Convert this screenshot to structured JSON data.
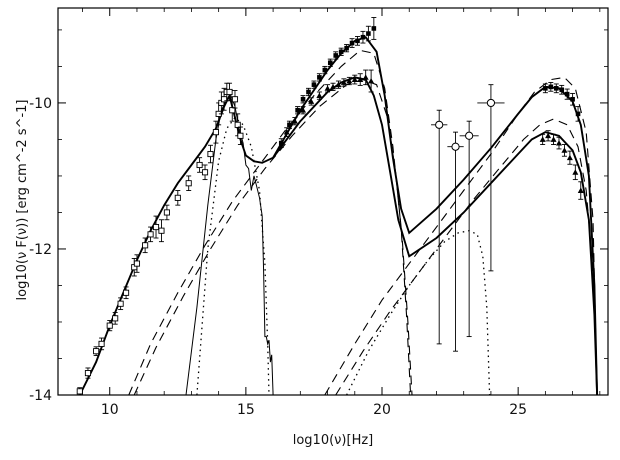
{
  "chart_data": {
    "type": "scatter",
    "title": "",
    "xlabel": "log10(ν)[Hz]",
    "ylabel": "log10(ν F(ν)) [erg cm^-2 s^-1]",
    "xlim": [
      8.1,
      28.3
    ],
    "ylim": [
      -14,
      -8.7
    ],
    "x_ticks": [
      10,
      15,
      20,
      25
    ],
    "x_tick_labels": [
      "10",
      "15",
      "20",
      "25"
    ],
    "y_ticks": [
      -14,
      -12,
      -10
    ],
    "y_tick_labels": [
      "-14",
      "-12",
      "-10"
    ],
    "grid": false,
    "legend": "none",
    "series": [
      {
        "style": "solid-high",
        "x": [
          8.9,
          9.5,
          10.0,
          10.5,
          11.0,
          11.5,
          12.0,
          12.5,
          13.0,
          13.5,
          13.9,
          14.2,
          14.4,
          14.6,
          14.8,
          15.0,
          15.3,
          15.6,
          16.0,
          17.0,
          18.0,
          18.5,
          19.0,
          19.4,
          19.8,
          20.1,
          20.4,
          20.7,
          21.0,
          22.0,
          23.0,
          24.0,
          25.0,
          25.5,
          26.0,
          26.5,
          27.0,
          27.3,
          27.6,
          27.8,
          27.9
        ],
        "y": [
          -14.0,
          -13.55,
          -13.05,
          -12.6,
          -12.15,
          -11.75,
          -11.4,
          -11.1,
          -10.85,
          -10.6,
          -10.35,
          -10.05,
          -9.9,
          -10.2,
          -10.5,
          -10.72,
          -10.8,
          -10.82,
          -10.75,
          -10.1,
          -9.55,
          -9.32,
          -9.15,
          -9.1,
          -9.3,
          -9.9,
          -10.75,
          -11.45,
          -11.78,
          -11.45,
          -11.05,
          -10.62,
          -10.15,
          -9.92,
          -9.78,
          -9.8,
          -9.98,
          -10.3,
          -11.0,
          -12.5,
          -14.0
        ]
      },
      {
        "style": "solid-low",
        "x": [
          16.0,
          17.0,
          18.0,
          18.5,
          19.0,
          19.4,
          19.7,
          20.0,
          20.3,
          20.6,
          21.0,
          22.0,
          23.0,
          24.0,
          25.0,
          25.5,
          26.0,
          26.5,
          27.0,
          27.3,
          27.6,
          27.8,
          27.9
        ],
        "y": [
          -10.75,
          -10.25,
          -9.85,
          -9.72,
          -9.65,
          -9.68,
          -9.9,
          -10.3,
          -10.95,
          -11.6,
          -12.1,
          -11.85,
          -11.5,
          -11.1,
          -10.7,
          -10.5,
          -10.4,
          -10.45,
          -10.65,
          -10.95,
          -11.6,
          -12.9,
          -14.0
        ]
      },
      {
        "style": "dashed-high",
        "x": [
          10.7,
          11.5,
          12.5,
          13.5,
          14.5,
          15.5,
          16.5,
          17.5,
          18.5,
          19.2,
          19.7,
          20.1,
          20.4,
          20.7,
          20.9,
          21.05
        ],
        "y": [
          -14.0,
          -13.3,
          -12.6,
          -11.95,
          -11.35,
          -10.85,
          -10.35,
          -9.9,
          -9.5,
          -9.28,
          -9.32,
          -9.8,
          -10.6,
          -11.7,
          -12.9,
          -14.0
        ]
      },
      {
        "style": "dashed-low",
        "x": [
          10.9,
          11.7,
          12.7,
          13.7,
          14.7,
          15.7,
          16.7,
          17.7,
          18.7,
          19.3,
          19.8,
          20.2,
          20.5,
          20.75,
          20.95,
          21.1
        ],
        "y": [
          -14.0,
          -13.35,
          -12.65,
          -12.0,
          -11.4,
          -10.9,
          -10.45,
          -10.05,
          -9.75,
          -9.68,
          -9.75,
          -10.2,
          -10.95,
          -11.9,
          -13.0,
          -14.0
        ]
      },
      {
        "style": "dashed-high",
        "x": [
          17.9,
          19.0,
          20.0,
          21.0,
          22.0,
          23.0,
          24.0,
          25.0,
          25.6,
          26.2,
          26.7,
          27.1,
          27.5,
          27.75,
          27.9
        ],
        "y": [
          -14.0,
          -13.3,
          -12.7,
          -12.2,
          -11.7,
          -11.2,
          -10.7,
          -10.15,
          -9.85,
          -9.68,
          -9.65,
          -9.8,
          -10.4,
          -11.6,
          -14.0
        ]
      },
      {
        "style": "dashed-low",
        "x": [
          18.3,
          19.3,
          20.3,
          21.3,
          22.3,
          23.3,
          24.3,
          25.2,
          25.8,
          26.3,
          26.8,
          27.2,
          27.5,
          27.75,
          27.9
        ],
        "y": [
          -14.0,
          -13.4,
          -12.85,
          -12.35,
          -11.85,
          -11.35,
          -10.9,
          -10.5,
          -10.3,
          -10.22,
          -10.3,
          -10.6,
          -11.2,
          -12.3,
          -14.0
        ]
      },
      {
        "style": "dotted",
        "x": [
          13.2,
          13.6,
          14.0,
          14.3,
          14.6,
          14.9,
          15.2,
          15.5,
          15.7,
          15.8,
          15.85
        ],
        "y": [
          -14.0,
          -12.0,
          -10.8,
          -10.35,
          -10.2,
          -10.3,
          -10.6,
          -11.2,
          -12.2,
          -13.3,
          -14.0
        ]
      },
      {
        "style": "dotted",
        "x": [
          18.7,
          19.5,
          20.3,
          21.0,
          21.7,
          22.3,
          22.8,
          23.2,
          23.5,
          23.7,
          23.85,
          23.95
        ],
        "y": [
          -14.0,
          -13.4,
          -12.9,
          -12.5,
          -12.15,
          -11.9,
          -11.78,
          -11.75,
          -11.8,
          -12.1,
          -12.8,
          -14.0
        ]
      },
      {
        "style": "thin",
        "x": [
          12.8,
          13.2,
          13.6,
          13.9,
          14.1,
          14.3,
          14.45,
          14.6,
          14.75,
          14.9,
          15.0,
          15.1,
          15.2,
          15.3,
          15.4,
          15.5,
          15.6,
          15.65,
          15.7,
          15.75,
          15.8,
          15.85,
          15.9,
          15.95,
          16.0
        ],
        "y": [
          -14.0,
          -12.8,
          -11.4,
          -10.5,
          -10.1,
          -9.95,
          -9.9,
          -10.05,
          -10.35,
          -10.55,
          -10.85,
          -10.9,
          -11.2,
          -11.0,
          -11.15,
          -11.3,
          -11.55,
          -12.3,
          -13.2,
          -13.2,
          -13.3,
          -13.25,
          -13.55,
          -13.45,
          -14.0
        ]
      },
      {
        "style": "points-open-squares",
        "x": [
          8.9,
          9.2,
          9.5,
          9.7,
          10.0,
          10.2,
          10.4,
          10.6,
          10.9,
          11.0,
          11.3,
          11.5,
          11.7,
          11.9,
          12.1,
          12.5,
          12.9,
          13.3,
          13.5,
          13.7,
          13.9,
          14.0,
          14.1,
          14.2,
          14.3,
          14.4,
          14.5,
          14.6,
          14.7,
          14.8
        ],
        "y": [
          -13.95,
          -13.7,
          -13.4,
          -13.3,
          -13.05,
          -12.95,
          -12.75,
          -12.6,
          -12.25,
          -12.2,
          -11.95,
          -11.8,
          -11.7,
          -11.75,
          -11.5,
          -11.3,
          -11.1,
          -10.85,
          -10.95,
          -10.7,
          -10.4,
          -10.15,
          -10.0,
          -9.95,
          -9.85,
          -9.85,
          -10.1,
          -9.95,
          -10.3,
          -10.45
        ],
        "yerr": [
          0.05,
          0.07,
          0.06,
          0.08,
          0.07,
          0.08,
          0.08,
          0.08,
          0.12,
          0.12,
          0.1,
          0.1,
          0.15,
          0.15,
          0.1,
          0.1,
          0.1,
          0.1,
          0.1,
          0.12,
          0.15,
          0.15,
          0.15,
          0.15,
          0.12,
          0.12,
          0.15,
          0.12,
          0.15,
          0.12
        ]
      },
      {
        "style": "points-filled-squares",
        "x": [
          16.3,
          16.6,
          16.9,
          17.1,
          17.3,
          17.5,
          17.7,
          17.9,
          18.1,
          18.3,
          18.5,
          18.7,
          18.9,
          19.1,
          19.3,
          19.5,
          19.7
        ],
        "y": [
          -10.55,
          -10.3,
          -10.1,
          -9.95,
          -9.85,
          -9.75,
          -9.65,
          -9.55,
          -9.45,
          -9.35,
          -9.3,
          -9.25,
          -9.18,
          -9.15,
          -9.1,
          -9.05,
          -8.98
        ],
        "yerr": [
          0.06,
          0.05,
          0.05,
          0.05,
          0.05,
          0.05,
          0.05,
          0.05,
          0.05,
          0.05,
          0.05,
          0.05,
          0.06,
          0.06,
          0.08,
          0.1,
          0.15
        ]
      },
      {
        "style": "points-filled-triangles",
        "x": [
          16.5,
          16.8,
          17.1,
          17.4,
          17.7,
          18.0,
          18.2,
          18.4,
          18.6,
          18.8,
          19.0,
          19.2,
          19.4,
          19.6
        ],
        "y": [
          -10.4,
          -10.25,
          -10.1,
          -9.98,
          -9.9,
          -9.8,
          -9.78,
          -9.75,
          -9.72,
          -9.7,
          -9.68,
          -9.68,
          -9.65,
          -9.7
        ],
        "yerr": [
          0.06,
          0.05,
          0.05,
          0.05,
          0.05,
          0.05,
          0.05,
          0.05,
          0.05,
          0.05,
          0.06,
          0.08,
          0.1,
          0.15
        ]
      },
      {
        "style": "points-open-circles",
        "x": [
          22.1,
          22.7,
          23.2,
          24.0
        ],
        "y": [
          -10.3,
          -10.6,
          -10.45,
          -10.0
        ],
        "xerr": [
          0.3,
          0.3,
          0.35,
          0.5
        ],
        "yerr": [
          0.2,
          0.2,
          0.2,
          0.25
        ],
        "ylow": [
          -13.3,
          -13.4,
          -13.2,
          -12.3
        ]
      },
      {
        "style": "points-filled-squares",
        "x": [
          26.0,
          26.2,
          26.4,
          26.6,
          26.8,
          27.0,
          27.2
        ],
        "y": [
          -9.8,
          -9.78,
          -9.8,
          -9.82,
          -9.88,
          -9.95,
          -10.15
        ],
        "yerr": [
          0.06,
          0.06,
          0.06,
          0.06,
          0.07,
          0.08,
          0.1
        ]
      },
      {
        "style": "points-filled-triangles",
        "x": [
          25.9,
          26.1,
          26.3,
          26.5,
          26.7,
          26.9,
          27.1,
          27.3
        ],
        "y": [
          -10.5,
          -10.45,
          -10.5,
          -10.55,
          -10.65,
          -10.75,
          -10.95,
          -11.2
        ],
        "yerr": [
          0.07,
          0.07,
          0.07,
          0.08,
          0.08,
          0.09,
          0.1,
          0.12
        ]
      }
    ]
  }
}
